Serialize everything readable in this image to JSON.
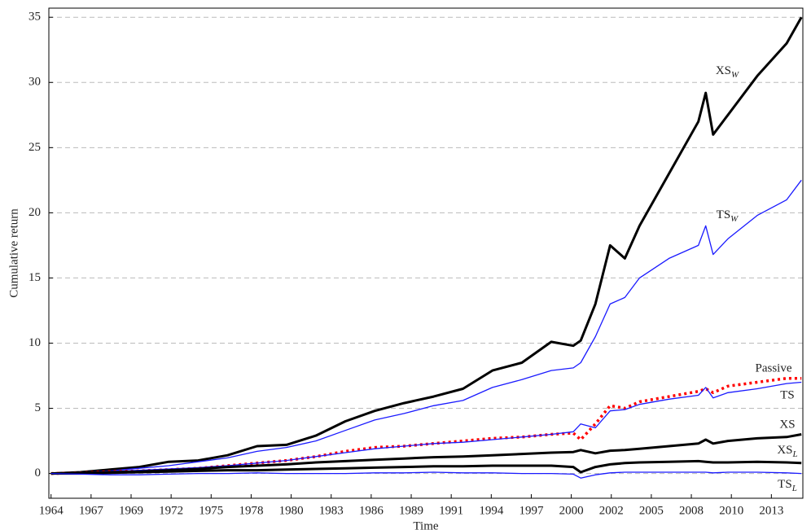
{
  "chart_data": {
    "type": "line",
    "xlabel": "Time",
    "ylabel": "Cumulative return",
    "x": [
      1964,
      1966,
      1968,
      1970,
      1972,
      1974,
      1976,
      1978,
      1980,
      1982,
      1984,
      1986,
      1988,
      1990,
      1992,
      1994,
      1996,
      1998,
      1999.5,
      2000,
      2001,
      2002,
      2003,
      2004,
      2006,
      2008,
      2008.5,
      2009,
      2010,
      2012,
      2014,
      2015
    ],
    "series": [
      {
        "name": "XS_W",
        "color": "#000000",
        "values": [
          0,
          0.1,
          0.3,
          0.5,
          0.9,
          1.0,
          1.4,
          2.1,
          2.2,
          2.9,
          4.0,
          4.8,
          5.4,
          5.9,
          6.5,
          7.9,
          8.5,
          10.1,
          9.8,
          10.2,
          13,
          17.5,
          16.5,
          19,
          23,
          27,
          29.2,
          26,
          27.5,
          30.5,
          33,
          35
        ]
      },
      {
        "name": "TS_W",
        "color": "#1a1aff",
        "values": [
          0,
          0.1,
          0.2,
          0.4,
          0.6,
          0.9,
          1.2,
          1.7,
          2.0,
          2.5,
          3.3,
          4.1,
          4.6,
          5.2,
          5.6,
          6.6,
          7.2,
          7.9,
          8.1,
          8.5,
          10.5,
          13,
          13.5,
          15,
          16.5,
          17.5,
          19,
          16.8,
          18,
          19.8,
          21,
          22.5
        ]
      },
      {
        "name": "Passive",
        "color": "#ff0000",
        "values": [
          0,
          0.05,
          0.15,
          0.2,
          0.3,
          0.4,
          0.6,
          0.8,
          1.0,
          1.3,
          1.7,
          2.0,
          2.1,
          2.3,
          2.5,
          2.7,
          2.8,
          3.0,
          3.1,
          2.6,
          3.8,
          5.2,
          5.0,
          5.5,
          5.9,
          6.3,
          6.5,
          6.2,
          6.7,
          7.0,
          7.3,
          7.3
        ]
      },
      {
        "name": "TS",
        "color": "#1a1aff",
        "values": [
          0,
          0.05,
          0.15,
          0.25,
          0.35,
          0.45,
          0.6,
          0.8,
          1.0,
          1.3,
          1.6,
          1.9,
          2.1,
          2.3,
          2.4,
          2.6,
          2.8,
          3.0,
          3.2,
          3.8,
          3.5,
          4.8,
          4.9,
          5.3,
          5.7,
          6.0,
          6.6,
          5.8,
          6.2,
          6.5,
          6.9,
          7.0
        ]
      },
      {
        "name": "XS",
        "color": "#000000",
        "values": [
          0,
          0.05,
          0.1,
          0.15,
          0.25,
          0.35,
          0.5,
          0.6,
          0.7,
          0.85,
          0.95,
          1.05,
          1.15,
          1.25,
          1.3,
          1.4,
          1.5,
          1.6,
          1.65,
          1.8,
          1.55,
          1.75,
          1.8,
          1.9,
          2.1,
          2.3,
          2.6,
          2.3,
          2.5,
          2.7,
          2.8,
          3.0
        ]
      },
      {
        "name": "XS_L",
        "color": "#000000",
        "values": [
          0,
          0,
          0.05,
          0.1,
          0.15,
          0.2,
          0.25,
          0.25,
          0.3,
          0.35,
          0.4,
          0.45,
          0.5,
          0.55,
          0.55,
          0.6,
          0.6,
          0.6,
          0.5,
          0.1,
          0.5,
          0.7,
          0.8,
          0.85,
          0.9,
          0.95,
          0.9,
          0.85,
          0.85,
          0.9,
          0.85,
          0.8
        ]
      },
      {
        "name": "TS_L",
        "color": "#1a1aff",
        "values": [
          0,
          -0.05,
          -0.1,
          -0.1,
          -0.05,
          0,
          0,
          0.05,
          0,
          0,
          0,
          0.05,
          0.05,
          0.1,
          0.05,
          0.05,
          0,
          0,
          -0.05,
          -0.35,
          -0.1,
          0.05,
          0.1,
          0.1,
          0.1,
          0.1,
          0.1,
          0.05,
          0.1,
          0.1,
          0.05,
          0
        ]
      }
    ],
    "xlim": [
      1963.85,
      2015.1
    ],
    "xticks": [
      {
        "value": 1964,
        "label": "1964"
      },
      {
        "value": 1966.72,
        "label": "1967"
      },
      {
        "value": 1969.44,
        "label": "1969"
      },
      {
        "value": 1972.16,
        "label": "1972"
      },
      {
        "value": 1974.88,
        "label": "1975"
      },
      {
        "value": 1977.6,
        "label": "1978"
      },
      {
        "value": 1980.32,
        "label": "1980"
      },
      {
        "value": 1983.04,
        "label": "1983"
      },
      {
        "value": 1985.76,
        "label": "1986"
      },
      {
        "value": 1988.48,
        "label": "1989"
      },
      {
        "value": 1991.2,
        "label": "1991"
      },
      {
        "value": 1993.92,
        "label": "1994"
      },
      {
        "value": 1996.64,
        "label": "1997"
      },
      {
        "value": 1999.36,
        "label": "2000"
      },
      {
        "value": 2002.08,
        "label": "2002"
      },
      {
        "value": 2004.8,
        "label": "2005"
      },
      {
        "value": 2007.52,
        "label": "2008"
      },
      {
        "value": 2010.24,
        "label": "2010"
      },
      {
        "value": 2012.96,
        "label": "2013"
      }
    ],
    "ylim": [
      -1.9,
      35.7
    ],
    "yticks": [
      0,
      5,
      10,
      15,
      20,
      25,
      30,
      35
    ],
    "grid": true
  }
}
